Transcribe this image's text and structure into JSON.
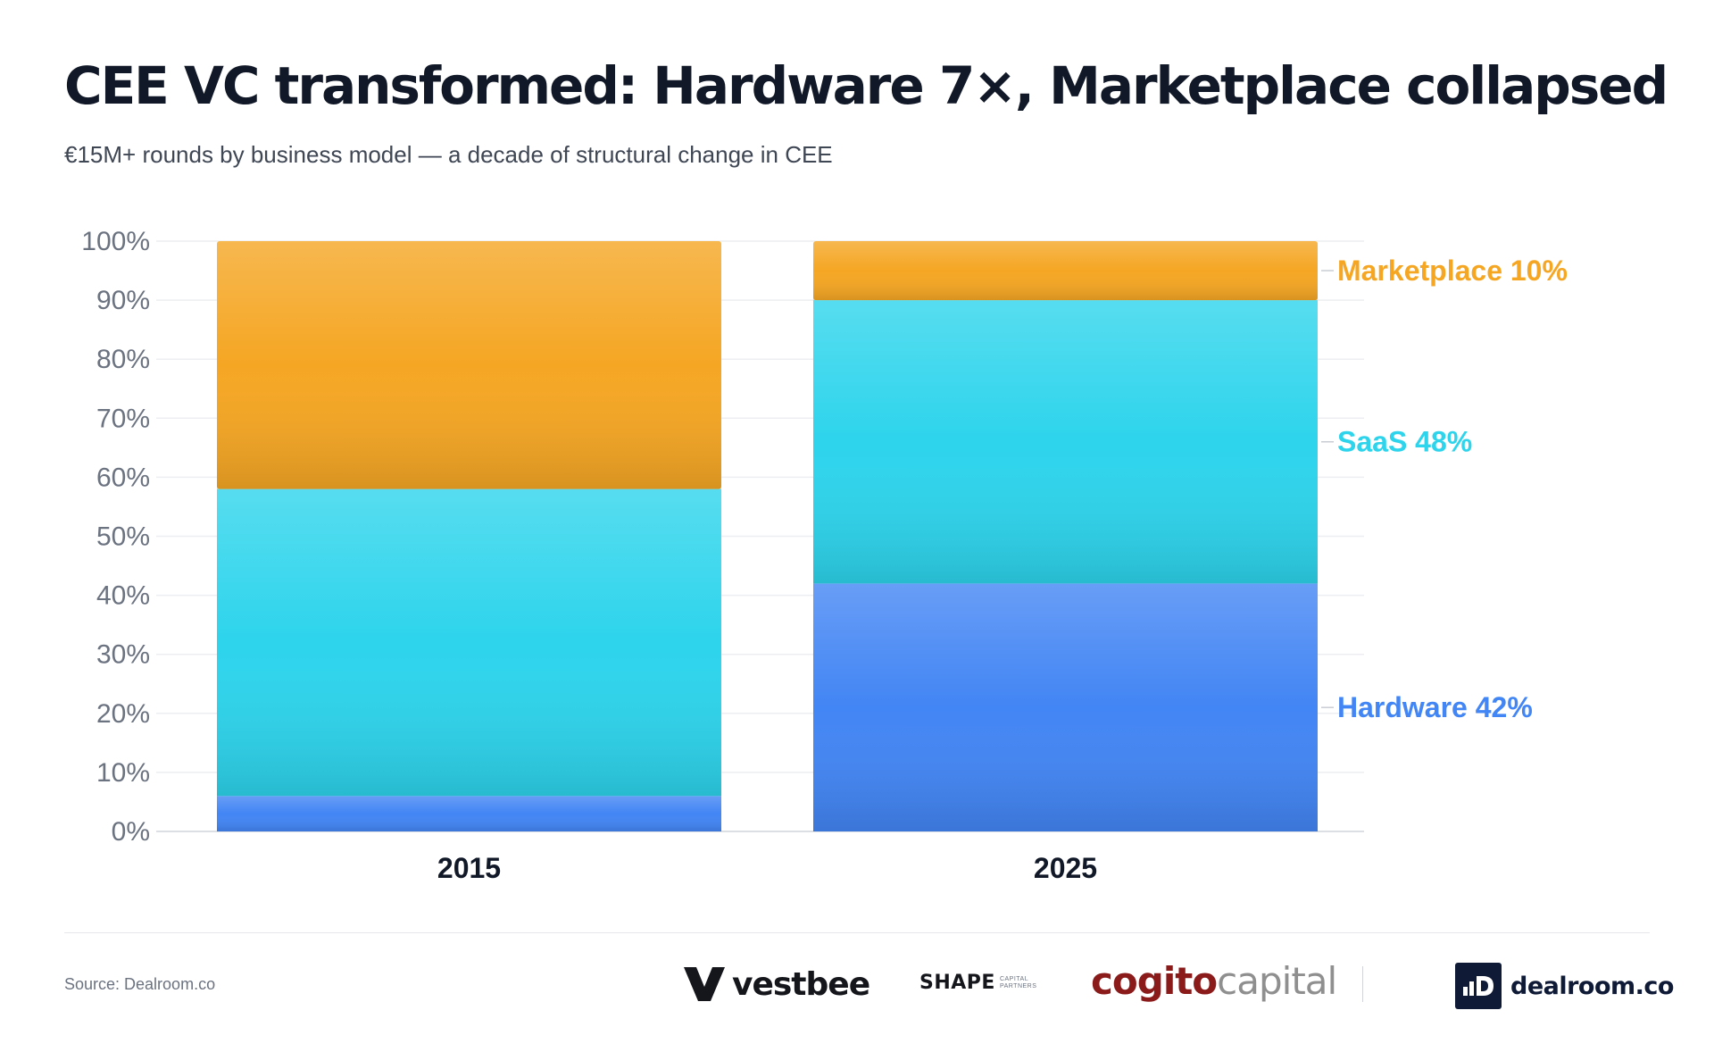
{
  "title": "CEE VC transformed: Hardware 7×, Marketplace collapsed",
  "subtitle": "€15M+ rounds by business model — a decade of structural change in CEE",
  "chart_data": {
    "type": "bar",
    "stacked": true,
    "categories": [
      "2015",
      "2025"
    ],
    "series": [
      {
        "name": "Hardware",
        "values": [
          6,
          42
        ],
        "color": "#4285f4"
      },
      {
        "name": "SaaS",
        "values": [
          52,
          48
        ],
        "color": "#2dd4ec"
      },
      {
        "name": "Marketplace",
        "values": [
          42,
          10
        ],
        "color": "#f5a623"
      }
    ],
    "labels": [
      "Marketplace 10%",
      "SaaS 48%",
      "Hardware 42%"
    ],
    "ylim": [
      0,
      100
    ],
    "yticks": [
      "0%",
      "10%",
      "20%",
      "30%",
      "40%",
      "50%",
      "60%",
      "70%",
      "80%",
      "90%",
      "100%"
    ],
    "grid": true,
    "legend": "direct labels right of 2025 bar"
  },
  "footer": {
    "source": "Source: Dealroom.co",
    "logos": {
      "vestbee": "vestbee",
      "shape": "SHAPE",
      "shape_small_1": "CAPITAL",
      "shape_small_2": "PARTNERS",
      "cogito_1": "cogito",
      "cogito_2": "capital",
      "dealroom": "dealroom.co"
    }
  }
}
